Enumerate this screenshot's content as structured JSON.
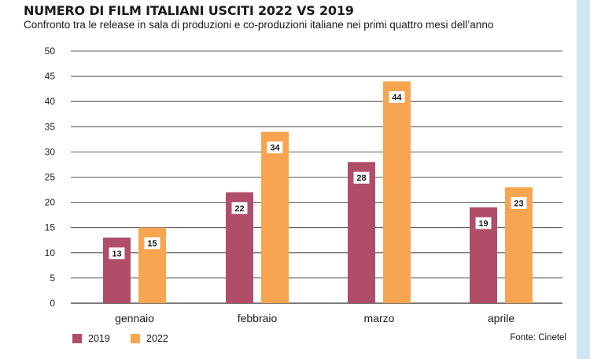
{
  "title": "NUMERO DI FILM ITALIANI USCITI 2022 VS 2019",
  "subtitle": "Confronto tra le release in sala di produzioni e co-produzioni italiane nei primi quattro mesi dell’anno",
  "source": "Fonte: Cinetel",
  "colors": {
    "series_2019": "#b04e69",
    "series_2022": "#f7a551",
    "grid": "#2b2b2b",
    "background_stripe": "#cfe6f5"
  },
  "chart_data": {
    "type": "bar",
    "categories": [
      "gennaio",
      "febbraio",
      "marzo",
      "aprile"
    ],
    "series": [
      {
        "name": "2019",
        "values": [
          13,
          22,
          28,
          19
        ]
      },
      {
        "name": "2022",
        "values": [
          15,
          34,
          44,
          23
        ]
      }
    ],
    "yticks": [
      0,
      5,
      10,
      15,
      20,
      25,
      30,
      35,
      40,
      45,
      50
    ],
    "ylim": [
      0,
      50
    ],
    "grid": true,
    "legend": "bottom-left",
    "xlabel": "",
    "ylabel": ""
  }
}
